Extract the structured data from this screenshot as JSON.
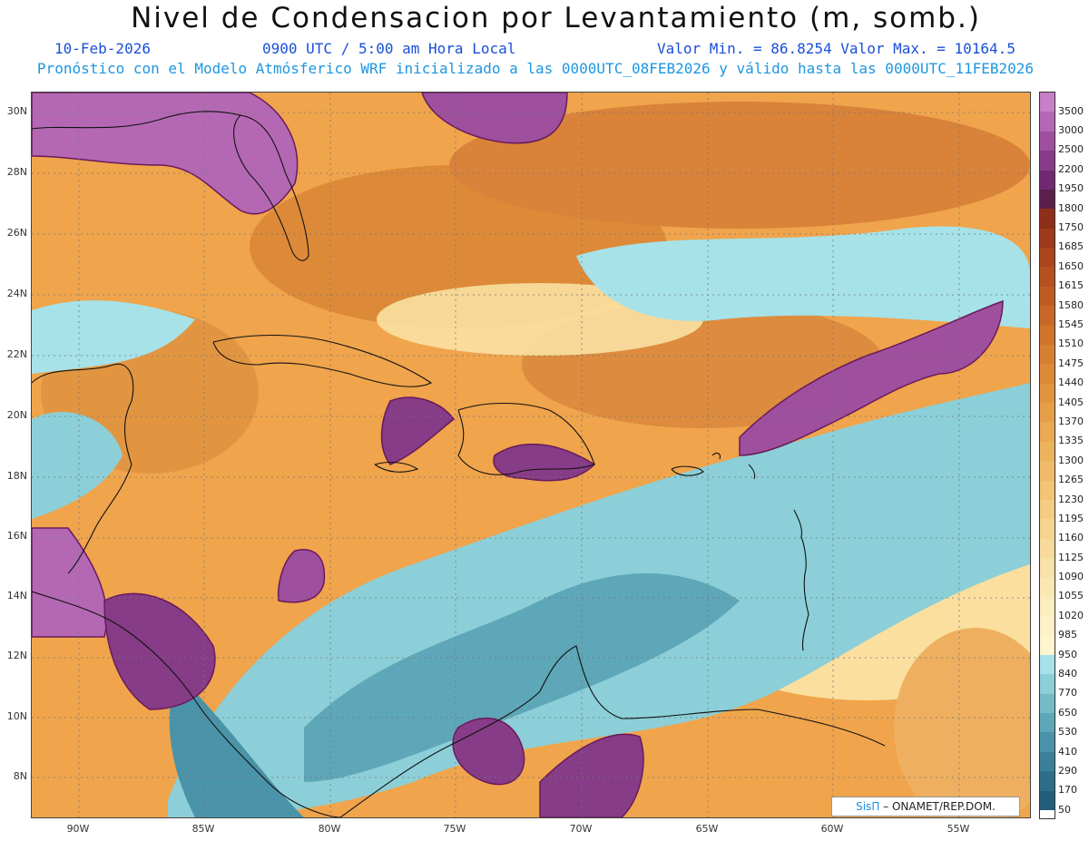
{
  "title": "Nivel de Condensacion por Levantamiento (m, somb.)",
  "date": "10-Feb-2026",
  "time": "0900 UTC / 5:00 am Hora Local",
  "minmax": "Valor Min. = 86.8254   Valor Max. = 10164.5",
  "subtitle": "Pronóstico con el Modelo Atmósferico WRF inicializado a las 0000UTC_08FEB2026 y válido hasta las  0000UTC_11FEB2026",
  "lat_labels": [
    "30N",
    "28N",
    "26N",
    "24N",
    "22N",
    "20N",
    "18N",
    "16N",
    "14N",
    "12N",
    "10N",
    "8N"
  ],
  "lon_labels": [
    "90W",
    "85W",
    "80W",
    "75W",
    "70W",
    "65W",
    "60W",
    "55W"
  ],
  "legend": {
    "labels": [
      "3500",
      "3000",
      "2500",
      "2200",
      "1950",
      "1800",
      "1750",
      "1685",
      "1650",
      "1615",
      "1580",
      "1545",
      "1510",
      "1475",
      "1440",
      "1405",
      "1370",
      "1335",
      "1300",
      "1265",
      "1230",
      "1195",
      "1160",
      "1125",
      "1090",
      "1055",
      "1020",
      "985",
      "950",
      "840",
      "770",
      "650",
      "530",
      "410",
      "290",
      "170",
      "50"
    ],
    "colors": [
      "#c77fc7",
      "#b468b4",
      "#9e4f9e",
      "#873c87",
      "#702a70",
      "#5a1f4c",
      "#8e2f1a",
      "#9c3a1a",
      "#a9461c",
      "#b5511f",
      "#c05c22",
      "#c86826",
      "#d0742b",
      "#d77f31",
      "#dd8a38",
      "#e2953f",
      "#e69f48",
      "#eaa952",
      "#edb25c",
      "#f0bb68",
      "#f2c474",
      "#f4cc82",
      "#f6d48f",
      "#f8db9c",
      "#f9e2a8",
      "#fae8b4",
      "#fbedbf",
      "#fcf1c8",
      "#fdf4d0",
      "#a6e2e8",
      "#8ccfd8",
      "#74bbc8",
      "#5ea7b8",
      "#4a93a8",
      "#3a8098",
      "#2e6e88",
      "#235d78"
    ],
    "land_color": "#f5b155"
  },
  "credit": {
    "brand": "SisΠ",
    "text": " – ONAMET/REP.DOM."
  }
}
